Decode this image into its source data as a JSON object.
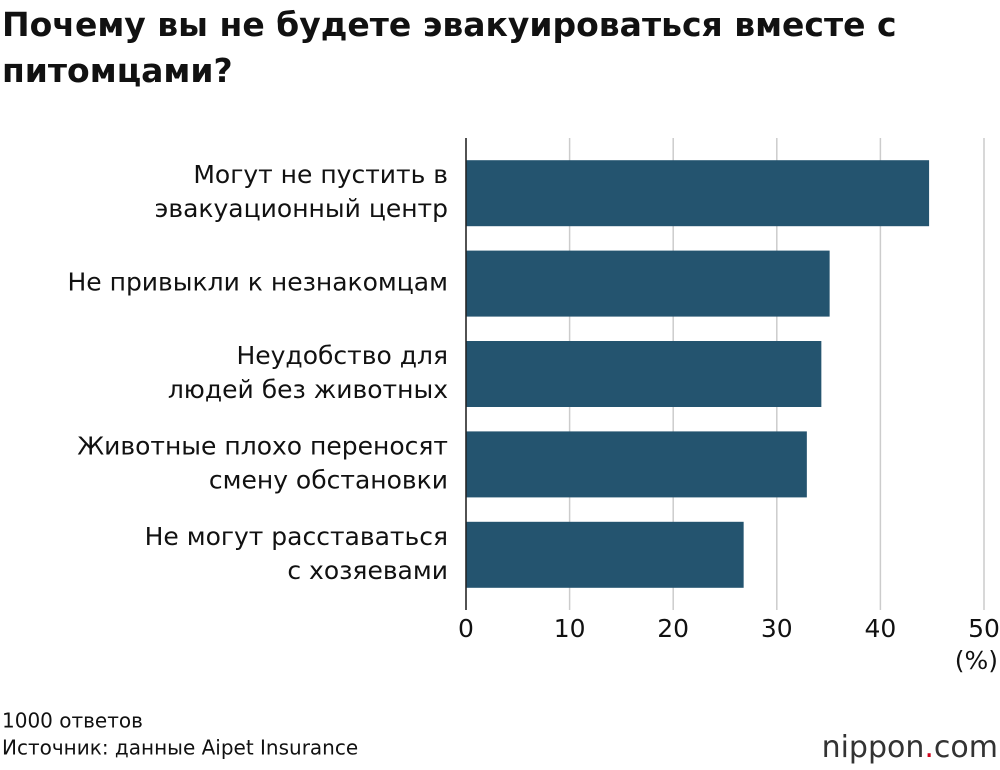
{
  "chart_data": {
    "type": "bar",
    "orientation": "horizontal",
    "title": "Почему вы не будете эвакуироваться вместе с питомцами?",
    "categories": [
      [
        "Могут не пустить в",
        "эвакуационный центр"
      ],
      [
        "Не привыкли к незнакомцам"
      ],
      [
        "Неудобство для",
        "людей без животных"
      ],
      [
        "Животные плохо переносят",
        "смену обстановки"
      ],
      [
        "Не могут расставаться",
        "с хозяевами"
      ]
    ],
    "values": [
      44.7,
      35.1,
      34.3,
      32.9,
      26.8
    ],
    "color": "#24546f",
    "xlim": [
      0,
      50
    ],
    "xticks": [
      0,
      10,
      20,
      30,
      40,
      50
    ],
    "x_unit": "(%)",
    "grid": true,
    "note": "1000 ответов",
    "source": "Источник: данные Aipet Insurance",
    "logo": [
      "nippon",
      ".",
      "com"
    ]
  }
}
